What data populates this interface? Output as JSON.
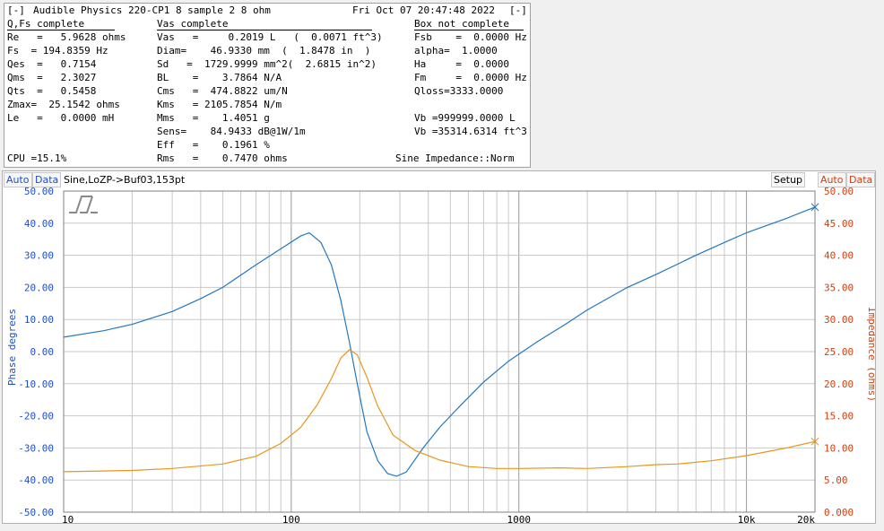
{
  "header": {
    "menu": "[-]",
    "title": "Audible Physics 220-CP1 8 sample 2 8 ohm",
    "datetime": "Fri Oct 07 20:47:48 2022",
    "menu_right": "[-]"
  },
  "sections": {
    "qfs": "Q,Fs complete",
    "vas": "Vas complete",
    "box": "Box not complete"
  },
  "col1": [
    "Re   =   5.9628 ohms",
    "Fs  = 194.8359 Hz",
    "Qes  =   0.7154",
    "Qms  =   2.3027",
    "Qts  =   0.5458",
    "Zmax=  25.1542 ohms",
    "Le   =   0.0000 mH"
  ],
  "col2": [
    "Vas   =     0.2019 L   (  0.0071 ft^3)",
    "Diam=    46.9330 mm  (  1.8478 in  )",
    "Sd   =  1729.9999 mm^2(  2.6815 in^2)",
    "BL    =    3.7864 N/A",
    "Cms   =  474.8822 um/N",
    "Kms   = 2105.7854 N/m",
    "Mms   =    1.4051 g",
    "Sens=    84.9433 dB@1W/1m",
    "Eff   =    0.1961 %",
    "Rms   =    0.7470 ohms"
  ],
  "col3": [
    "Fsb    =  0.0000 Hz",
    "alpha=  1.0000",
    "Ha     =  0.0000",
    "Fm     =  0.0000 Hz",
    "Qloss=3333.0000",
    "",
    "Vb =999999.0000 L",
    "Vb =35314.6314 ft^3"
  ],
  "status": {
    "cpu": "CPU =15.1%",
    "mode": "Sine Impedance::Norm"
  },
  "toolbar": {
    "auto_left": "Auto",
    "data_left": "Data",
    "trace_info": "Sine,LoZP->Buf03,153pt",
    "setup": "Setup",
    "auto_right": "Auto",
    "data_right": "Data"
  },
  "colors": {
    "phase": "#2277c0",
    "impedance": "#e8961c",
    "axis_left": "#1f4fd0",
    "axis_right": "#d04010"
  },
  "chart_data": {
    "type": "line",
    "xscale": "log",
    "xlim": [
      10,
      20000
    ],
    "x_ticks": [
      "10",
      "100",
      "1000",
      "10k",
      "20k"
    ],
    "y_left": {
      "label": "Phase degrees",
      "lim": [
        -50,
        50
      ],
      "ticks": [
        "50.00",
        "40.00",
        "30.00",
        "20.00",
        "10.00",
        "0.00",
        "-10.00",
        "-20.00",
        "-30.00",
        "-40.00",
        "-50.00"
      ]
    },
    "y_right": {
      "label": "Impedance (ohms)",
      "lim": [
        0,
        50
      ],
      "ticks": [
        "50.00",
        "45.00",
        "40.00",
        "35.00",
        "30.00",
        "25.00",
        "20.00",
        "15.00",
        "10.00",
        "5.00",
        "0.000"
      ]
    },
    "series": [
      {
        "axis": "left",
        "x": [
          10,
          15,
          20,
          30,
          40,
          50,
          70,
          90,
          110,
          120,
          135,
          150,
          165,
          180,
          195,
          215,
          240,
          265,
          290,
          320,
          380,
          450,
          550,
          700,
          900,
          1200,
          1600,
          2000,
          3000,
          4000,
          6000,
          8000,
          10000,
          15000,
          20000
        ],
        "y": [
          4.5,
          6.5,
          8.5,
          12.5,
          16.5,
          20,
          27,
          32,
          36,
          37,
          34,
          27,
          16,
          3,
          -10,
          -25,
          -34,
          -38,
          -38.8,
          -37.5,
          -30,
          -23.5,
          -17,
          -9.5,
          -3,
          3,
          8.5,
          13,
          20,
          24,
          30,
          34,
          37,
          41.5,
          45
        ]
      },
      {
        "axis": "right",
        "x": [
          10,
          20,
          30,
          50,
          70,
          90,
          110,
          130,
          150,
          165,
          180,
          195,
          215,
          240,
          280,
          350,
          450,
          600,
          800,
          1000,
          1500,
          2000,
          3000,
          4000,
          5000,
          7000,
          10000,
          15000,
          20000
        ],
        "y": [
          6.3,
          6.5,
          6.8,
          7.5,
          8.7,
          10.7,
          13.2,
          16.7,
          20.8,
          24,
          25.3,
          24.5,
          21,
          16.5,
          12,
          9.6,
          8.1,
          7.1,
          6.8,
          6.8,
          6.9,
          6.8,
          7.1,
          7.4,
          7.5,
          8.0,
          8.8,
          10.0,
          11.0
        ]
      }
    ]
  }
}
